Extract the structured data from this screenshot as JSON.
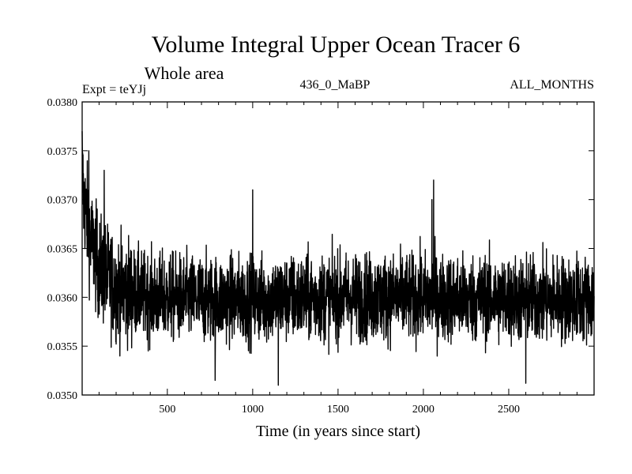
{
  "chart_data": {
    "type": "line",
    "title": "Volume Integral Upper Ocean Tracer 6",
    "subtitle": "Whole area",
    "expt_label": "Expt = teYJj",
    "period_label": "436_0_MaBP",
    "months_label": "ALL_MONTHS",
    "xlabel": "Time (in years since start)",
    "ylabel": "",
    "xlim": [
      1,
      3000
    ],
    "ylim": [
      0.035,
      0.038
    ],
    "x_ticks": [
      {
        "value": 500,
        "label": "500"
      },
      {
        "value": 1000,
        "label": "1000"
      },
      {
        "value": 1500,
        "label": "1500"
      },
      {
        "value": 2000,
        "label": "2000"
      },
      {
        "value": 2500,
        "label": "2500"
      }
    ],
    "y_ticks": [
      {
        "value": 0.035,
        "label": "0.0350"
      },
      {
        "value": 0.0355,
        "label": "0.0355"
      },
      {
        "value": 0.036,
        "label": "0.0360"
      },
      {
        "value": 0.0365,
        "label": "0.0365"
      },
      {
        "value": 0.037,
        "label": "0.0370"
      },
      {
        "value": 0.0375,
        "label": "0.0375"
      },
      {
        "value": 0.038,
        "label": "0.0380"
      }
    ],
    "series": [
      {
        "name": "Volume Integral Upper Ocean Tracer 6",
        "color": "#000000",
        "description": "Noisy annual series; starts near 0.0377, decays over first ~300 years to ~0.0360, then fluctuates around 0.0360 (range ~0.0351-0.0372) until year 3000.",
        "keypoints_x": [
          1,
          10,
          50,
          100,
          150,
          200,
          300,
          400,
          500,
          700,
          1000,
          1500,
          2000,
          2500,
          3000
        ],
        "keypoints_mean": [
          0.0373,
          0.037,
          0.0366,
          0.0363,
          0.0362,
          0.0361,
          0.03605,
          0.036,
          0.036,
          0.03598,
          0.03598,
          0.036,
          0.036,
          0.03598,
          0.03598
        ],
        "noise_amplitude": 0.00022,
        "spikes": [
          {
            "x": 1,
            "y": 0.0377
          },
          {
            "x": 40,
            "y": 0.0375
          },
          {
            "x": 130,
            "y": 0.0373
          },
          {
            "x": 1000,
            "y": 0.0371
          },
          {
            "x": 1150,
            "y": 0.0351
          },
          {
            "x": 2060,
            "y": 0.0372
          },
          {
            "x": 2050,
            "y": 0.037
          },
          {
            "x": 780,
            "y": 0.03515
          },
          {
            "x": 2600,
            "y": 0.03512
          }
        ]
      }
    ]
  }
}
